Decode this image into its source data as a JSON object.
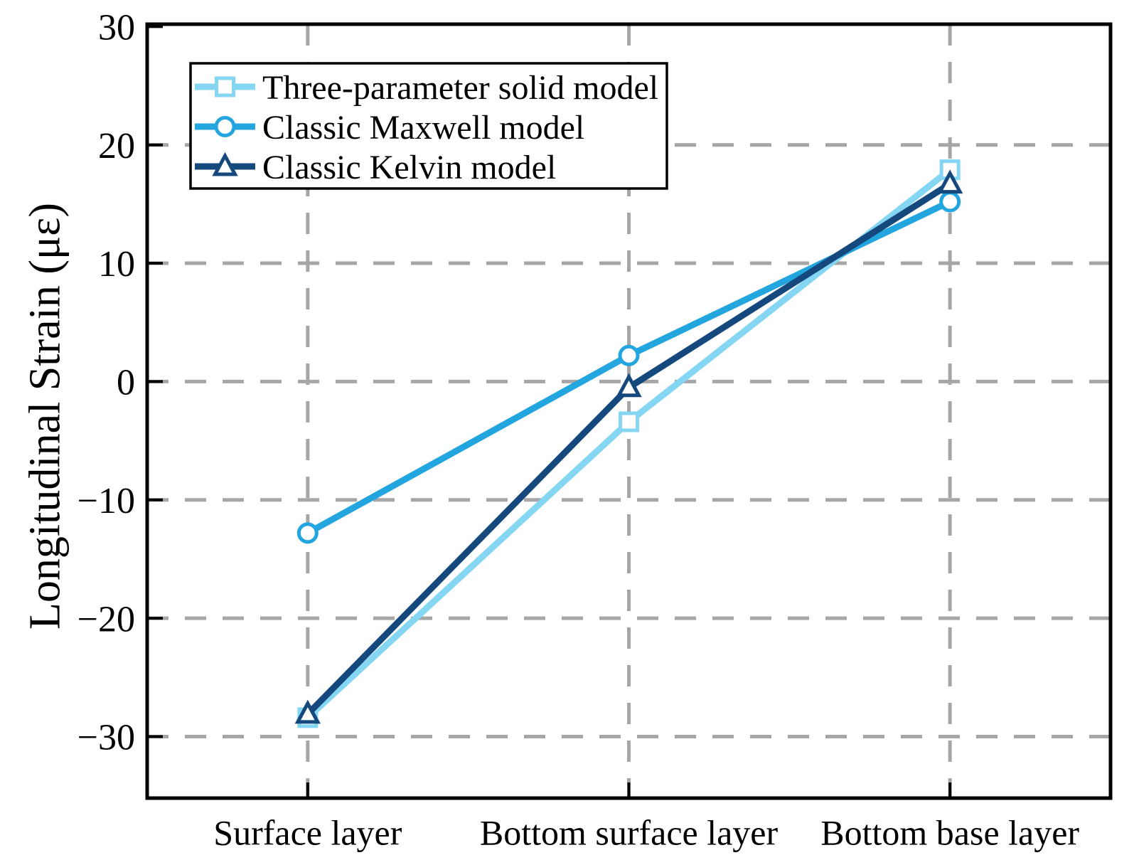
{
  "chart_data": {
    "type": "line",
    "title": "",
    "xlabel": "",
    "ylabel": "Longitudinal Strain (με)",
    "categories": [
      "Surface layer",
      "Bottom surface layer",
      "Bottom base layer"
    ],
    "series": [
      {
        "name": "Three-parameter solid model",
        "marker": "square",
        "color": "#84D6F2",
        "values": [
          -28.4,
          -3.4,
          17.9
        ]
      },
      {
        "name": "Classic Maxwell model",
        "marker": "circle",
        "color": "#23A5DF",
        "values": [
          -12.8,
          2.2,
          15.2
        ]
      },
      {
        "name": "Classic Kelvin model",
        "marker": "triangle",
        "color": "#15497E",
        "values": [
          -28.1,
          -0.5,
          16.7
        ]
      }
    ],
    "yticks": [
      30,
      20,
      10,
      0,
      -10,
      -20,
      -30
    ],
    "ylim": [
      -35.2,
      30.2
    ],
    "grid": "dashed",
    "grid_color": "#A6A6A6",
    "frame_color": "#000000",
    "marker_fill": "#FFFFFF",
    "legend_position": "top-left",
    "legend_entries": [
      "Three-parameter solid model",
      "Classic Maxwell model",
      "Classic Kelvin model"
    ]
  }
}
